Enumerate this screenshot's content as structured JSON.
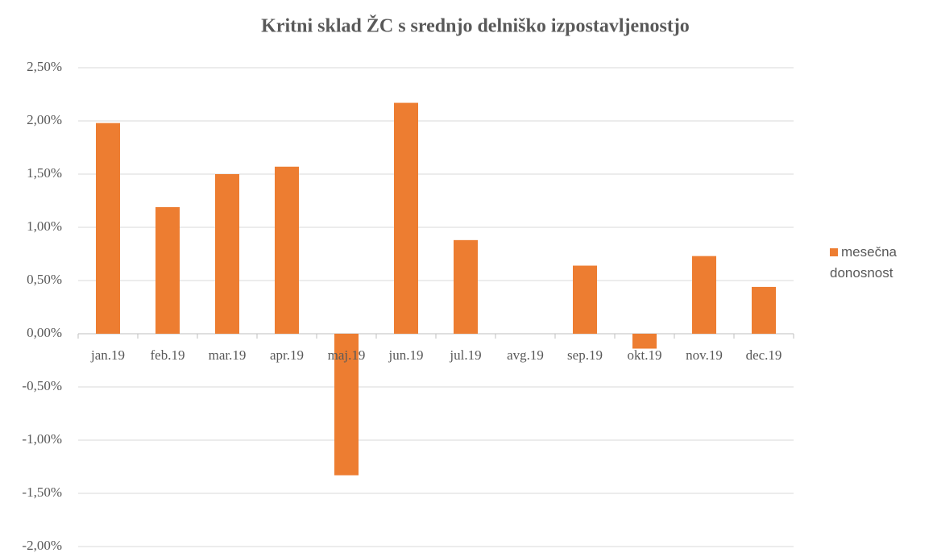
{
  "chart_data": {
    "type": "bar",
    "title": "Kritni sklad ŽC s srednjo delniško izpostavljenostjo",
    "categories": [
      "jan.19",
      "feb.19",
      "mar.19",
      "apr.19",
      "maj.19",
      "jun.19",
      "jul.19",
      "avg.19",
      "sep.19",
      "okt.19",
      "nov.19",
      "dec.19"
    ],
    "series": [
      {
        "name": "mesečna donosnost",
        "color": "#ed7d31",
        "values": [
          1.98,
          1.19,
          1.5,
          1.57,
          -1.33,
          2.17,
          0.88,
          0,
          0.64,
          -0.14,
          0.73,
          0.44
        ]
      }
    ],
    "ylim": [
      -2,
      2.5
    ],
    "yticks": [
      {
        "value": -2,
        "label": "-2,00%"
      },
      {
        "value": -1.5,
        "label": "-1,50%"
      },
      {
        "value": -1,
        "label": "-1,00%"
      },
      {
        "value": -0.5,
        "label": "-0,50%"
      },
      {
        "value": 0,
        "label": "0,00%"
      },
      {
        "value": 0.5,
        "label": "0,50%"
      },
      {
        "value": 1,
        "label": "1,00%"
      },
      {
        "value": 1.5,
        "label": "1,50%"
      },
      {
        "value": 2,
        "label": "2,00%"
      },
      {
        "value": 2.5,
        "label": "2,50%"
      }
    ],
    "grid": true,
    "legend": "right"
  }
}
